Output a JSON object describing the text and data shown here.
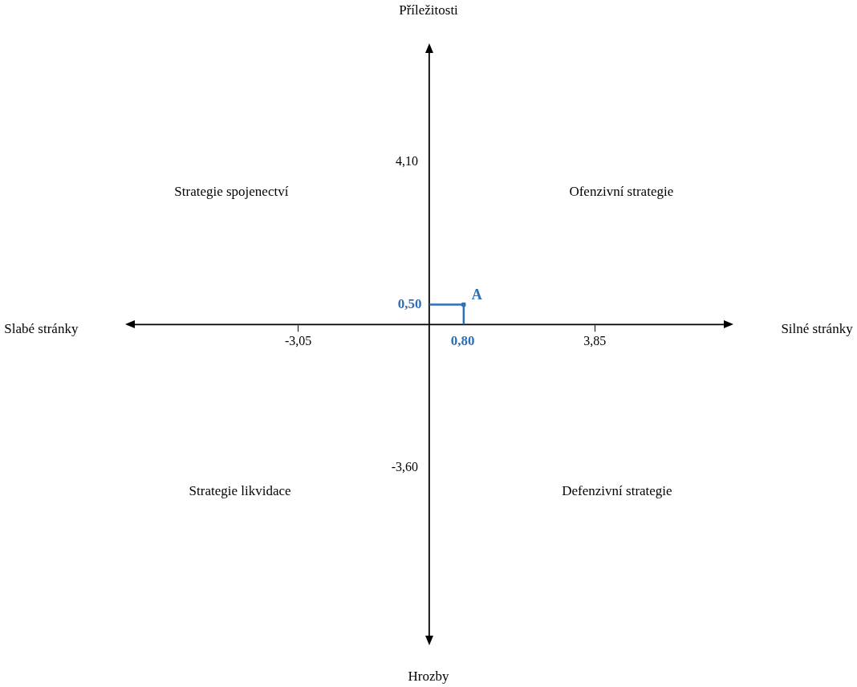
{
  "chart_data": {
    "type": "scatter",
    "x": [
      0.8
    ],
    "series": [
      {
        "name": "A",
        "color": "#2e6fba",
        "values": [
          0.5
        ]
      }
    ],
    "marker": "square",
    "grid": false,
    "legend": false,
    "xlim": [
      -7,
      7
    ],
    "ylim": [
      -8,
      7
    ],
    "xticks": [
      {
        "value": -3.05,
        "label": "-3,05"
      },
      {
        "value": 3.85,
        "label": "3,85"
      }
    ],
    "yticks": [
      {
        "value": 4.1,
        "label": "4,10"
      },
      {
        "value": -3.6,
        "label": "-3,60"
      }
    ],
    "annotations": [
      "Strategie spojenectví",
      "Ofenzivní strategie",
      "Strategie likvidace",
      "Defenzivní strategie",
      "Slabé stránky",
      "Silné stránky",
      "Příležitosti",
      "Hrozby",
      "0,80",
      "0,50"
    ]
  }
}
